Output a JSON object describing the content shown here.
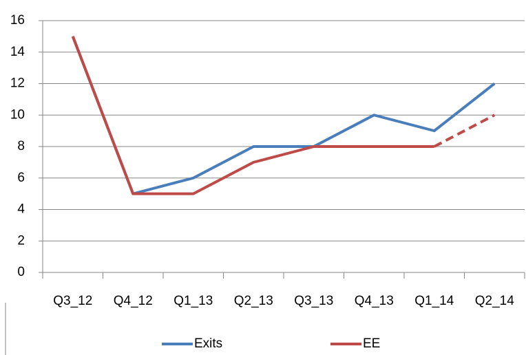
{
  "chart_data": {
    "type": "line",
    "categories": [
      "Q3_12",
      "Q4_12",
      "Q1_13",
      "Q2_13",
      "Q3_13",
      "Q4_13",
      "Q1_14",
      "Q2_14"
    ],
    "series": [
      {
        "name": "Exits",
        "color": "#4a7ebb",
        "values": [
          15,
          5,
          6,
          8,
          8,
          10,
          9,
          12
        ]
      },
      {
        "name": "EE",
        "color": "#be4b48",
        "values": [
          15,
          5,
          5,
          7,
          8,
          8,
          8,
          10
        ],
        "dash_from": "Q1_14"
      }
    ],
    "ylim": [
      0,
      16
    ],
    "yticks": [
      0,
      2,
      4,
      6,
      8,
      10,
      12,
      14,
      16
    ],
    "grid": true,
    "legend": "bottom"
  }
}
